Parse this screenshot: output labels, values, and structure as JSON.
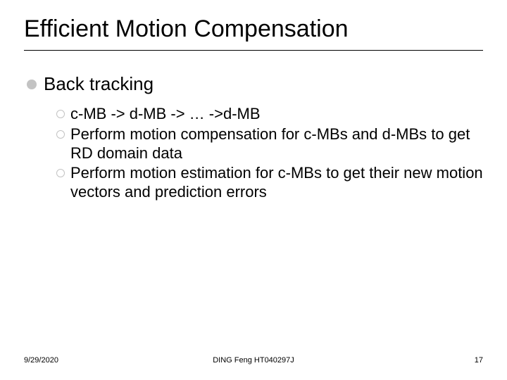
{
  "title": "Efficient Motion Compensation",
  "bullet_color": "#c3c3c3",
  "text_color": "#000000",
  "background": "#ffffff",
  "title_fontsize": 34,
  "body_fontsize_l1": 26,
  "body_fontsize_l2": 22,
  "section": {
    "heading": "Back tracking",
    "items": [
      "c-MB -> d-MB -> … ->d-MB",
      "Perform motion compensation for c-MBs and d-MBs to get RD domain data",
      "Perform motion estimation for c-MBs to get their new motion vectors and prediction errors"
    ]
  },
  "footer": {
    "date": "9/29/2020",
    "author": "DING Feng   HT040297J",
    "page": "17"
  }
}
